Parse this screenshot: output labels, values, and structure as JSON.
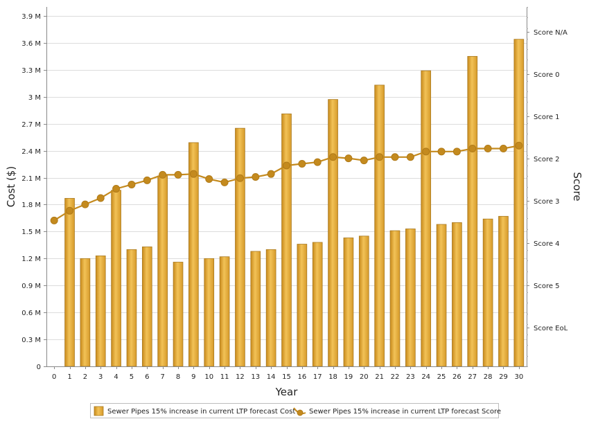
{
  "chart_data": {
    "type": "bar",
    "xlabel": "Year",
    "ylabel": "Cost ($)",
    "y2label": "Score",
    "categories": [
      "0",
      "1",
      "2",
      "3",
      "4",
      "5",
      "6",
      "7",
      "8",
      "9",
      "10",
      "11",
      "12",
      "13",
      "14",
      "15",
      "16",
      "17",
      "18",
      "19",
      "20",
      "21",
      "22",
      "23",
      "24",
      "25",
      "26",
      "27",
      "28",
      "29",
      "30"
    ],
    "ylim": [
      0,
      4000000
    ],
    "y_ticks": [
      0,
      300000,
      600000,
      900000,
      1200000,
      1500000,
      1800000,
      2100000,
      2400000,
      2700000,
      3000000,
      3300000,
      3600000,
      3900000
    ],
    "y_tick_labels": [
      "0",
      "0.3 M",
      "0.6 M",
      "0.9 M",
      "1.2 M",
      "1.5 M",
      "1.8 M",
      "2.1 M",
      "2.4 M",
      "2.7 M",
      "3 M",
      "3.3 M",
      "3.6 M",
      "3.9 M"
    ],
    "y2_tick_labels": [
      "Score EoL",
      "Score 5",
      "Score 4",
      "Score 3",
      "Score 2",
      "Score 1",
      "Score 0",
      "Score N/A"
    ],
    "y2_tick_values": [
      -0.333,
      0.667,
      1.667,
      2.667,
      3.667,
      4.667,
      5.667,
      6.667
    ],
    "y2lim": [
      -1.25,
      7.25
    ],
    "series": [
      {
        "name": "Sewer Pipes 15% increase in current LTP forecast Cost",
        "type": "bar",
        "axis": "left",
        "color": "#E3A93A",
        "values": [
          0,
          1870000,
          1200000,
          1230000,
          1960000,
          1300000,
          1330000,
          2120000,
          1160000,
          2490000,
          1200000,
          1220000,
          2650000,
          1280000,
          1300000,
          2810000,
          1360000,
          1380000,
          2970000,
          1430000,
          1450000,
          3130000,
          1510000,
          1530000,
          3290000,
          1580000,
          1600000,
          3450000,
          1640000,
          1670000,
          3640000
        ]
      },
      {
        "name": "Sewer Pipes 15% increase in current LTP forecast Score",
        "type": "line",
        "axis": "right",
        "color": "#C48A1E",
        "values": [
          2.2,
          2.43,
          2.58,
          2.73,
          2.95,
          3.05,
          3.15,
          3.28,
          3.28,
          3.3,
          3.18,
          3.1,
          3.2,
          3.23,
          3.3,
          3.5,
          3.54,
          3.58,
          3.7,
          3.67,
          3.62,
          3.7,
          3.7,
          3.7,
          3.83,
          3.83,
          3.83,
          3.9,
          3.9,
          3.9,
          3.97
        ]
      }
    ],
    "grid": true,
    "legend_position": "bottom"
  }
}
